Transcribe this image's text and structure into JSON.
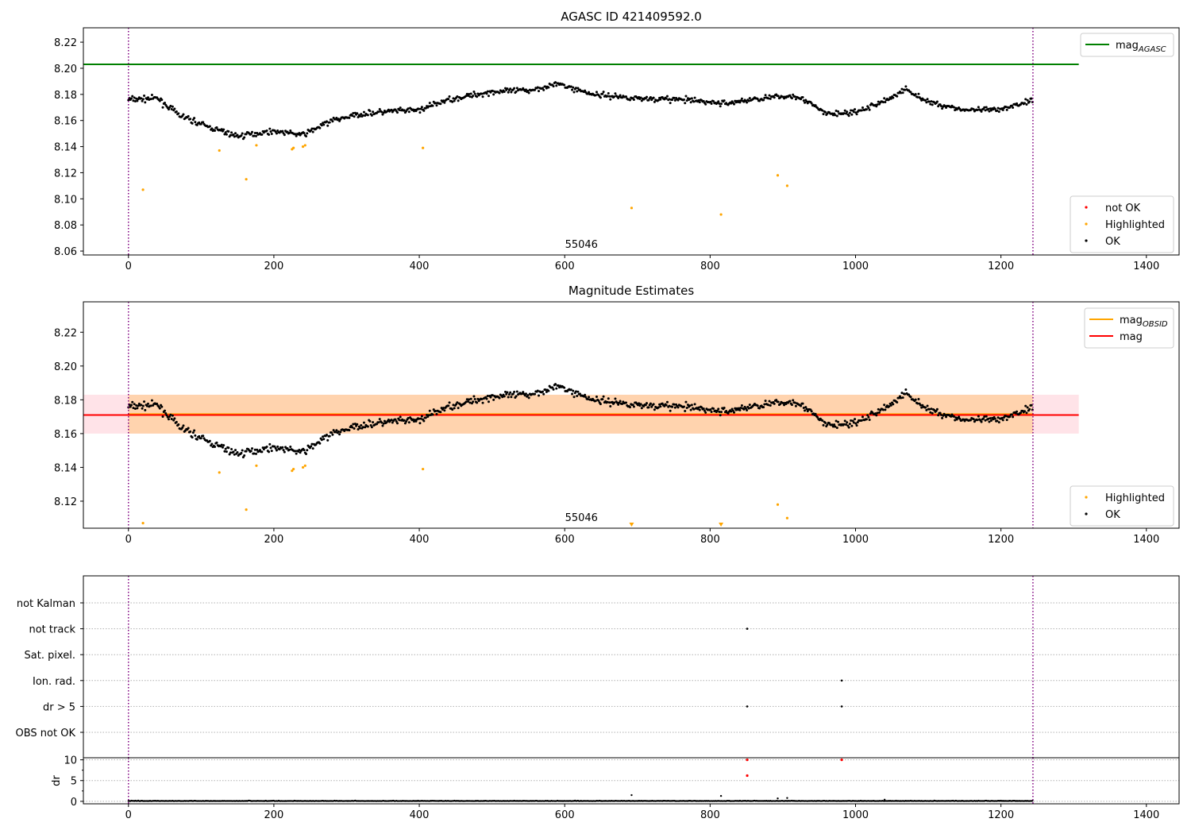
{
  "chart_data": [
    {
      "type": "scatter",
      "title": "AGASC ID 421409592.0",
      "xlim": [
        -62,
        1445
      ],
      "ylim": [
        8.057,
        8.231
      ],
      "xticks": [
        0,
        200,
        400,
        600,
        800,
        1000,
        1200,
        1400
      ],
      "yticks": [
        8.06,
        8.08,
        8.1,
        8.12,
        8.14,
        8.16,
        8.18,
        8.2,
        8.22
      ],
      "grid": false,
      "vlines": [
        0,
        1244
      ],
      "annotation": {
        "text": "55046",
        "x": 623
      },
      "hline": {
        "name": "mag_AGASC",
        "y": 8.203,
        "x": [
          -62,
          1307
        ],
        "color": "#008000"
      },
      "highlighted": [
        [
          20,
          8.107
        ],
        [
          125,
          8.137
        ],
        [
          162,
          8.115
        ],
        [
          176,
          8.141
        ],
        [
          225,
          8.138
        ],
        [
          227,
          8.139
        ],
        [
          240,
          8.14
        ],
        [
          243,
          8.141
        ],
        [
          405,
          8.139
        ],
        [
          692,
          8.093
        ],
        [
          815,
          8.088
        ],
        [
          893,
          8.118
        ],
        [
          906,
          8.11
        ]
      ],
      "not_ok": [],
      "legends": [
        {
          "position": "upper-right",
          "entries": [
            {
              "label": "mag",
              "sub": "AGASC",
              "kind": "line",
              "color": "#008000"
            }
          ]
        },
        {
          "position": "lower-right",
          "entries": [
            {
              "label": "not OK",
              "kind": "dot",
              "color": "#ff0000"
            },
            {
              "label": "Highlighted",
              "kind": "dot",
              "color": "#ffa500"
            },
            {
              "label": "OK",
              "kind": "dot",
              "color": "#000000"
            }
          ]
        }
      ]
    },
    {
      "type": "scatter",
      "title": "Magnitude Estimates",
      "xlim": [
        -62,
        1445
      ],
      "ylim": [
        8.104,
        8.238
      ],
      "xticks": [
        0,
        200,
        400,
        600,
        800,
        1000,
        1200,
        1400
      ],
      "yticks": [
        8.12,
        8.14,
        8.16,
        8.18,
        8.2,
        8.22
      ],
      "grid": false,
      "vlines": [
        0,
        1244
      ],
      "annotation": {
        "text": "55046",
        "x": 623
      },
      "bands": [
        {
          "x": [
            -62,
            1307
          ],
          "y": [
            8.16,
            8.183
          ],
          "color": "#ffc0cb",
          "opacity": 0.45
        },
        {
          "x": [
            0,
            1244
          ],
          "y": [
            8.16,
            8.183
          ],
          "color": "#ffa500",
          "opacity": 0.25
        }
      ],
      "lines": [
        {
          "name": "mag_OBSID",
          "y": 8.1715,
          "x": [
            0,
            1244
          ],
          "color": "#ffa500"
        },
        {
          "name": "mag",
          "y": 8.171,
          "x": [
            -62,
            1307
          ],
          "color": "#ff0000"
        }
      ],
      "highlighted": [
        [
          20,
          8.107
        ],
        [
          125,
          8.137
        ],
        [
          162,
          8.115
        ],
        [
          176,
          8.141
        ],
        [
          225,
          8.138
        ],
        [
          227,
          8.139
        ],
        [
          240,
          8.14
        ],
        [
          243,
          8.141
        ],
        [
          405,
          8.139
        ],
        [
          893,
          8.118
        ],
        [
          906,
          8.11
        ]
      ],
      "offscale_markers": [
        692,
        815
      ],
      "legends": [
        {
          "position": "upper-right",
          "entries": [
            {
              "label": "mag",
              "sub": "OBSID",
              "kind": "line",
              "color": "#ffa500"
            },
            {
              "label": "mag",
              "kind": "line",
              "color": "#ff0000"
            }
          ]
        },
        {
          "position": "lower-right",
          "entries": [
            {
              "label": "Highlighted",
              "kind": "dot",
              "color": "#ffa500"
            },
            {
              "label": "OK",
              "kind": "dot",
              "color": "#000000"
            }
          ]
        }
      ]
    },
    {
      "type": "scatter",
      "title": "",
      "xlim": [
        -62,
        1445
      ],
      "flag_rows": [
        "not Kalman",
        "not track",
        "Sat. pixel.",
        "Ion. rad.",
        "dr > 5",
        "OBS not OK"
      ],
      "grid": true,
      "vlines": [
        0,
        1244
      ],
      "flags": [
        {
          "row": "not track",
          "x": [
            851
          ]
        },
        {
          "row": "Ion. rad.",
          "x": [
            981
          ]
        },
        {
          "row": "dr > 5",
          "x": [
            851,
            981
          ]
        }
      ]
    },
    {
      "type": "scatter",
      "title": "",
      "ylabel": "dr",
      "xlim": [
        -62,
        1445
      ],
      "ylim": [
        -0.6,
        10.5
      ],
      "xticks": [
        0,
        200,
        400,
        600,
        800,
        1000,
        1200,
        1400
      ],
      "yticks": [
        0,
        5,
        10
      ],
      "grid": true,
      "vlines": [
        0,
        1244
      ],
      "red_points": [
        [
          851,
          10
        ],
        [
          851,
          6.2
        ],
        [
          981,
          10
        ]
      ],
      "extra_points": [
        [
          692,
          1.5
        ],
        [
          815,
          1.3
        ],
        [
          893,
          0.7
        ],
        [
          906,
          0.8
        ],
        [
          1040,
          0.4
        ]
      ]
    }
  ]
}
